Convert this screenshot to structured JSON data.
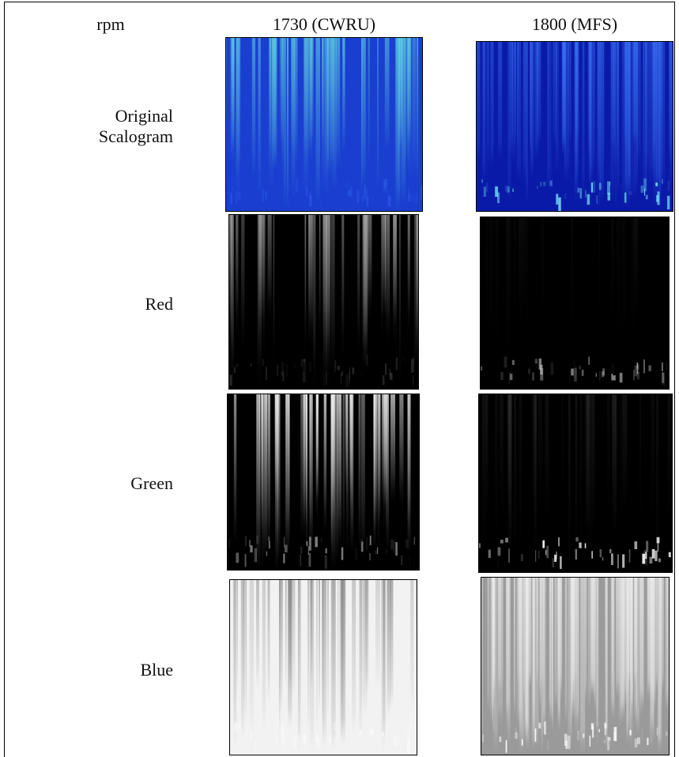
{
  "header": {
    "rpm": "rpm",
    "columns": [
      "1730 (CWRU)",
      "1800 (MFS)"
    ]
  },
  "rows": [
    {
      "label": "Original Scalogram"
    },
    {
      "label": "Red"
    },
    {
      "label": "Green"
    },
    {
      "label": "Blue"
    }
  ]
}
